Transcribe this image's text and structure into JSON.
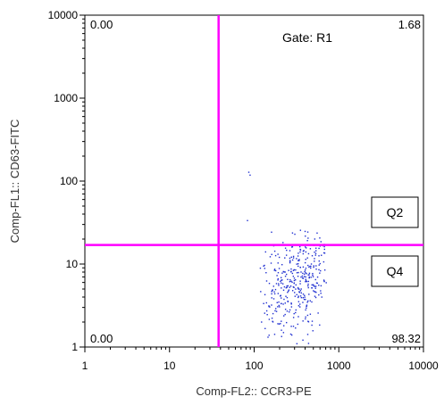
{
  "chart_data": {
    "type": "scatter",
    "x_scale": "log",
    "y_scale": "log",
    "xlim": [
      1,
      10000
    ],
    "ylim": [
      1,
      10000
    ],
    "xlabel": "Comp-FL2:: CCR3-PE",
    "ylabel": "Comp-FL1:: CD63-FITC",
    "x_tick_labels": [
      "1",
      "10",
      "100",
      "1000",
      "10000"
    ],
    "y_tick_labels": [
      "1",
      "10",
      "100",
      "1000",
      "10000"
    ],
    "gate_label": "Gate: R1",
    "quadrant_divider": {
      "x": 38,
      "y": 17
    },
    "quadrant_percentages": {
      "upper_left": "0.00",
      "upper_right": "1.68",
      "lower_left": "0.00",
      "lower_right": "98.32"
    },
    "quadrant_labels": [
      "Q2",
      "Q4"
    ],
    "divider_color": "#ff00ff",
    "point_color": "#1f2fd0",
    "populations": [
      {
        "region": "main_cluster",
        "x_center": 320,
        "y_center": 6,
        "x_spread_log": 0.22,
        "y_spread_log": 0.3,
        "count": 420
      },
      {
        "region": "outliers",
        "points": [
          [
            85,
            130
          ],
          [
            88,
            120
          ],
          [
            82,
            34
          ]
        ]
      }
    ]
  }
}
